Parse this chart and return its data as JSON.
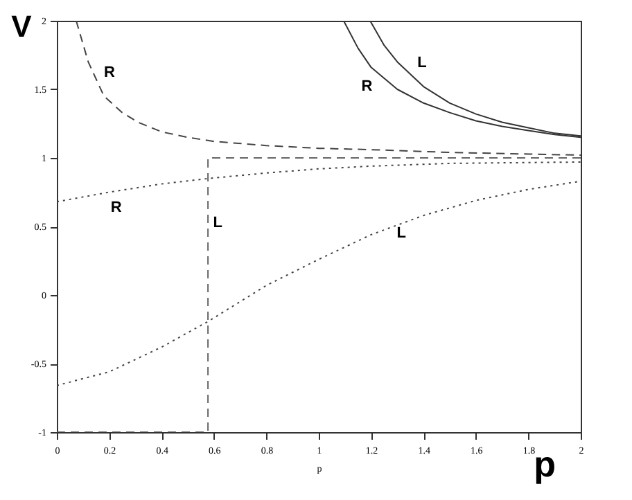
{
  "chart_data": {
    "type": "line",
    "xlabel": "p",
    "ylabel": "V",
    "xlim": [
      0,
      2
    ],
    "ylim": [
      -1,
      2
    ],
    "xticks": [
      0,
      0.2,
      0.4,
      0.6,
      0.8,
      1,
      1.2,
      1.4,
      1.6,
      1.8,
      2
    ],
    "yticks": [
      -1,
      -0.5,
      0,
      0.5,
      1,
      1.5,
      2
    ],
    "grid": false,
    "legend": false,
    "series": [
      {
        "name": "R",
        "color": "#333333",
        "line_style": "solid",
        "x": [
          1.095,
          1.15,
          1.2,
          1.3,
          1.4,
          1.5,
          1.6,
          1.7,
          1.8,
          1.9,
          2
        ],
        "values": [
          2,
          1.8,
          1.66,
          1.5,
          1.4,
          1.33,
          1.27,
          1.23,
          1.2,
          1.17,
          1.15
        ]
      },
      {
        "name": "L",
        "color": "#333333",
        "line_style": "solid",
        "x": [
          1.196,
          1.25,
          1.3,
          1.4,
          1.5,
          1.6,
          1.7,
          1.8,
          1.9,
          2
        ],
        "values": [
          2,
          1.82,
          1.7,
          1.52,
          1.4,
          1.32,
          1.26,
          1.22,
          1.18,
          1.16
        ]
      },
      {
        "name": "R",
        "color": "#444444",
        "line_style": "dashed",
        "x": [
          0.074,
          0.12,
          0.18,
          0.25,
          0.31,
          0.4,
          0.5,
          0.6,
          0.8,
          1,
          1.2,
          1.5,
          2
        ],
        "values": [
          2,
          1.7,
          1.45,
          1.33,
          1.26,
          1.19,
          1.15,
          1.12,
          1.09,
          1.07,
          1.06,
          1.04,
          1.02
        ]
      },
      {
        "name": "L",
        "color": "#666666",
        "line_style": "dashed",
        "x": [
          0,
          0.577,
          0.577,
          2
        ],
        "values": [
          -1,
          -1,
          1,
          1
        ]
      },
      {
        "name": "R",
        "color": "#444444",
        "line_style": "dotted",
        "x": [
          0,
          0.2,
          0.4,
          0.58,
          0.8,
          1,
          1.2,
          1.5,
          2
        ],
        "values": [
          0.68,
          0.75,
          0.81,
          0.85,
          0.89,
          0.92,
          0.94,
          0.96,
          0.97
        ]
      },
      {
        "name": "L",
        "color": "#444444",
        "line_style": "dotted",
        "x": [
          0,
          0.2,
          0.4,
          0.58,
          0.8,
          1,
          1.2,
          1.4,
          1.6,
          1.8,
          2
        ],
        "values": [
          -0.66,
          -0.56,
          -0.38,
          -0.19,
          0.07,
          0.26,
          0.44,
          0.58,
          0.69,
          0.77,
          0.83
        ]
      }
    ],
    "annotations": [
      "p"
    ]
  }
}
